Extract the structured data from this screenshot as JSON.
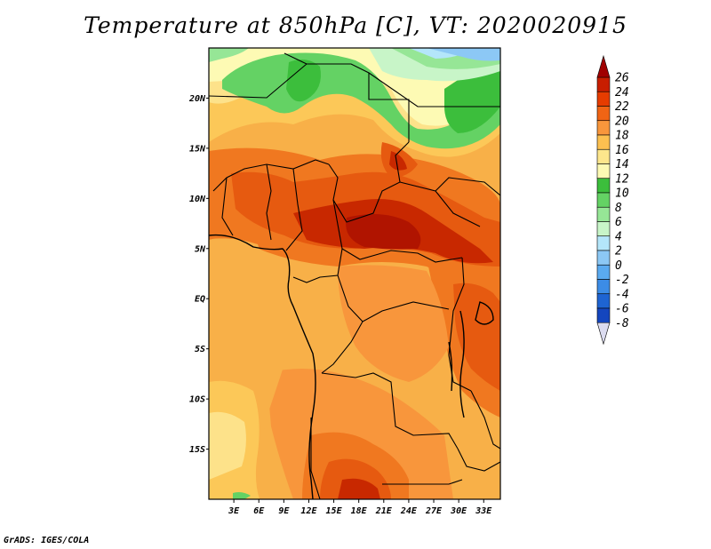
{
  "title": "Temperature at 850hPa [C], VT: 2020020915",
  "credit": "GrADS: IGES/COLA",
  "map": {
    "region": "Central Africa",
    "variable": "Temperature at 850hPa",
    "units": "C",
    "valid_time": "2020020915",
    "lon_range": [
      0,
      35
    ],
    "lat_range": [
      -20,
      25
    ],
    "lon_labels": [
      "3E",
      "6E",
      "9E",
      "12E",
      "15E",
      "18E",
      "21E",
      "24E",
      "27E",
      "30E",
      "33E"
    ],
    "lat_labels": [
      "20N",
      "15N",
      "10N",
      "5N",
      "EQ",
      "5S",
      "10S",
      "15S"
    ]
  },
  "colorbar": {
    "labels": [
      "26",
      "24",
      "22",
      "20",
      "18",
      "16",
      "14",
      "12",
      "10",
      "8",
      "6",
      "4",
      "2",
      "0",
      "-2",
      "-4",
      "-6",
      "-8"
    ],
    "colors": [
      "#a00000",
      "#c81e00",
      "#e63c00",
      "#f06414",
      "#f8963c",
      "#fcc050",
      "#fde68c",
      "#fdfab4",
      "#3cbe3c",
      "#64d264",
      "#96e696",
      "#c8f5c8",
      "#b4e6fa",
      "#8cc8f5",
      "#5aaaf0",
      "#3c8ce6",
      "#1e64d2",
      "#1446be",
      "#0a2896",
      "#000064"
    ],
    "top_color": "#a00000",
    "bottom_color": "#dcdcf0"
  }
}
